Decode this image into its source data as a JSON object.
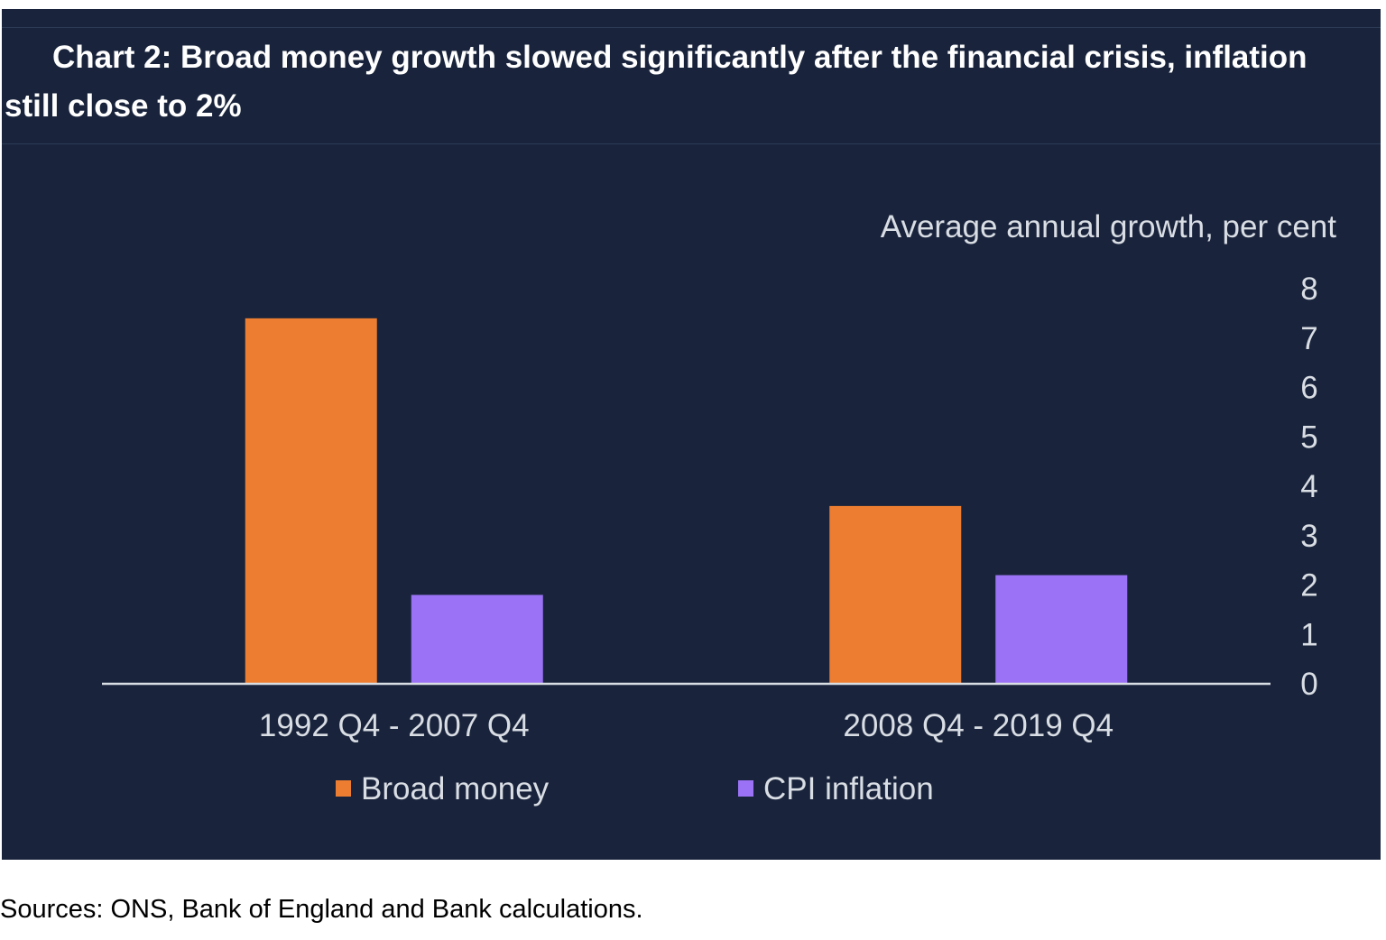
{
  "chart": {
    "title": "Chart 2: Broad money growth slowed significantly after the financial crisis, inflation still close to 2%",
    "y_axis_title": "Average annual growth, per cent"
  },
  "footer": {
    "source": "Sources: ONS, Bank of England and Bank calculations."
  },
  "colors": {
    "background": "#19243c",
    "broad_money": "#ed7d31",
    "cpi_inflation": "#9b72f5",
    "axis_text": "#d9dde4"
  },
  "chart_data": {
    "type": "bar",
    "title": "Chart 2: Broad money growth slowed significantly after the financial crisis, inflation still close to 2%",
    "xlabel": "",
    "ylabel": "Average annual growth, per cent",
    "categories": [
      "1992 Q4 - 2007 Q4",
      "2008 Q4 - 2019 Q4"
    ],
    "series": [
      {
        "name": "Broad money",
        "values": [
          7.4,
          3.6
        ],
        "color": "#ed7d31"
      },
      {
        "name": "CPI inflation",
        "values": [
          1.8,
          2.2
        ],
        "color": "#9b72f5"
      }
    ],
    "ylim": [
      0,
      8
    ],
    "yticks": [
      0,
      1,
      2,
      3,
      4,
      5,
      6,
      7,
      8
    ],
    "y_axis_side": "right",
    "grid": false,
    "legend_position": "bottom"
  }
}
